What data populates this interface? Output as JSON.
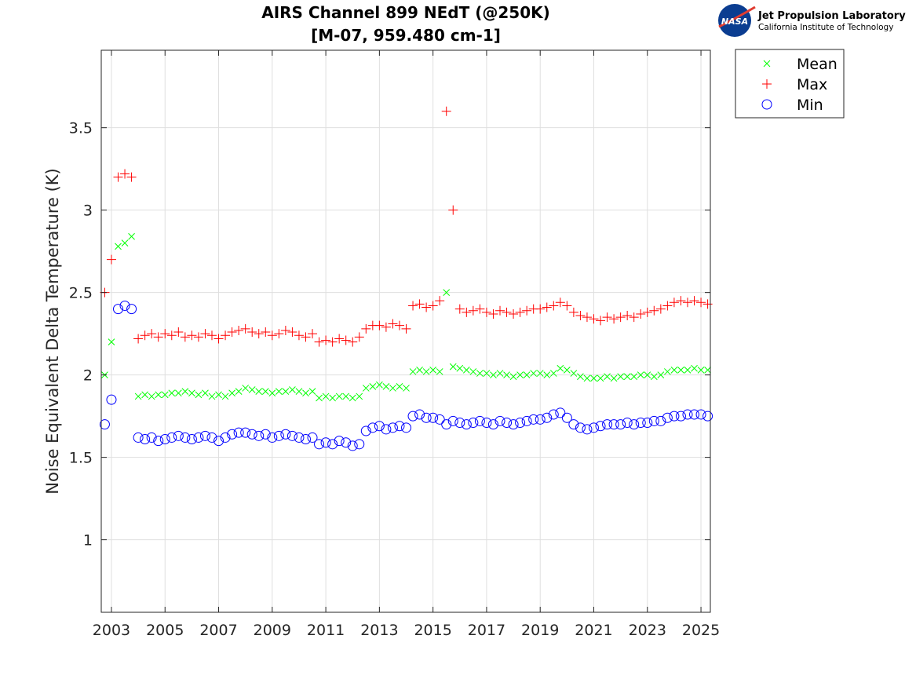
{
  "logo": {
    "org_name": "Jet Propulsion Laboratory",
    "org_sub": "California Institute of Technology",
    "badge": "NASA"
  },
  "chart_data": {
    "type": "scatter",
    "title": [
      "AIRS Channel 899 NEdT (@250K)",
      "[M-07, 959.480 cm-1]"
    ],
    "xlabel": "",
    "ylabel": "Noise Equivalent Delta Temperature (K)",
    "xlim": [
      2002.62,
      2025.35
    ],
    "ylim": [
      0.56,
      3.97
    ],
    "xticks": [
      2003,
      2005,
      2007,
      2009,
      2011,
      2013,
      2015,
      2017,
      2019,
      2021,
      2023,
      2025
    ],
    "xtick_labels": [
      "2003",
      "2005",
      "2007",
      "2009",
      "2011",
      "2013",
      "2015",
      "2017",
      "2019",
      "2021",
      "2023",
      "2025"
    ],
    "yticks": [
      1,
      1.5,
      2,
      2.5,
      3,
      3.5
    ],
    "ytick_labels": [
      "1",
      "1.5",
      "2",
      "2.5",
      "3",
      "3.5"
    ],
    "grid": true,
    "legend_position": "outside-top-right",
    "x_start": 2002.75,
    "x_step": 0.25,
    "series": [
      {
        "name": "Mean",
        "marker": "x",
        "color": "#00ff00",
        "values": [
          2.0,
          2.2,
          2.78,
          2.8,
          2.84,
          1.87,
          1.88,
          1.87,
          1.88,
          1.88,
          1.89,
          1.89,
          1.9,
          1.89,
          1.88,
          1.89,
          1.87,
          1.88,
          1.87,
          1.89,
          1.9,
          1.92,
          1.91,
          1.9,
          1.9,
          1.89,
          1.9,
          1.9,
          1.91,
          1.9,
          1.89,
          1.9,
          1.86,
          1.87,
          1.86,
          1.87,
          1.87,
          1.86,
          1.87,
          1.92,
          1.93,
          1.94,
          1.93,
          1.92,
          1.93,
          1.92,
          2.02,
          2.03,
          2.02,
          2.03,
          2.02,
          2.5,
          2.05,
          2.04,
          2.03,
          2.02,
          2.01,
          2.01,
          2.0,
          2.01,
          2.0,
          1.99,
          2.0,
          2.0,
          2.01,
          2.01,
          2.0,
          2.01,
          2.04,
          2.03,
          2.01,
          1.99,
          1.98,
          1.98,
          1.98,
          1.99,
          1.98,
          1.99,
          1.99,
          1.99,
          2.0,
          2.0,
          1.99,
          2.0,
          2.02,
          2.03,
          2.03,
          2.03,
          2.04,
          2.03,
          2.03
        ]
      },
      {
        "name": "Max",
        "marker": "+",
        "color": "#ff0000",
        "values": [
          2.5,
          2.7,
          3.2,
          3.22,
          3.2,
          2.22,
          2.24,
          2.25,
          2.23,
          2.25,
          2.24,
          2.26,
          2.23,
          2.24,
          2.23,
          2.25,
          2.24,
          2.22,
          2.24,
          2.26,
          2.27,
          2.28,
          2.26,
          2.25,
          2.26,
          2.24,
          2.25,
          2.27,
          2.26,
          2.24,
          2.23,
          2.25,
          2.2,
          2.21,
          2.2,
          2.22,
          2.21,
          2.2,
          2.23,
          2.28,
          2.3,
          2.3,
          2.29,
          2.31,
          2.3,
          2.28,
          2.42,
          2.43,
          2.41,
          2.42,
          2.45,
          3.6,
          3.0,
          2.4,
          2.38,
          2.39,
          2.4,
          2.38,
          2.37,
          2.39,
          2.38,
          2.37,
          2.38,
          2.39,
          2.4,
          2.4,
          2.41,
          2.42,
          2.44,
          2.42,
          2.38,
          2.36,
          2.35,
          2.34,
          2.33,
          2.35,
          2.34,
          2.35,
          2.36,
          2.35,
          2.37,
          2.38,
          2.39,
          2.4,
          2.42,
          2.44,
          2.45,
          2.44,
          2.45,
          2.44,
          2.43
        ]
      },
      {
        "name": "Min",
        "marker": "o",
        "color": "#0000ff",
        "values": [
          1.7,
          1.85,
          2.4,
          2.42,
          2.4,
          1.62,
          1.61,
          1.62,
          1.6,
          1.61,
          1.62,
          1.63,
          1.62,
          1.61,
          1.62,
          1.63,
          1.62,
          1.6,
          1.62,
          1.64,
          1.65,
          1.65,
          1.64,
          1.63,
          1.64,
          1.62,
          1.63,
          1.64,
          1.63,
          1.62,
          1.61,
          1.62,
          1.58,
          1.59,
          1.58,
          1.6,
          1.59,
          1.57,
          1.58,
          1.66,
          1.68,
          1.69,
          1.67,
          1.68,
          1.69,
          1.68,
          1.75,
          1.76,
          1.74,
          1.74,
          1.73,
          1.7,
          1.72,
          1.71,
          1.7,
          1.71,
          1.72,
          1.71,
          1.7,
          1.72,
          1.71,
          1.7,
          1.71,
          1.72,
          1.73,
          1.73,
          1.74,
          1.76,
          1.77,
          1.74,
          1.7,
          1.68,
          1.67,
          1.68,
          1.69,
          1.7,
          1.7,
          1.7,
          1.71,
          1.7,
          1.71,
          1.71,
          1.72,
          1.72,
          1.74,
          1.75,
          1.75,
          1.76,
          1.76,
          1.76,
          1.75
        ]
      }
    ]
  }
}
